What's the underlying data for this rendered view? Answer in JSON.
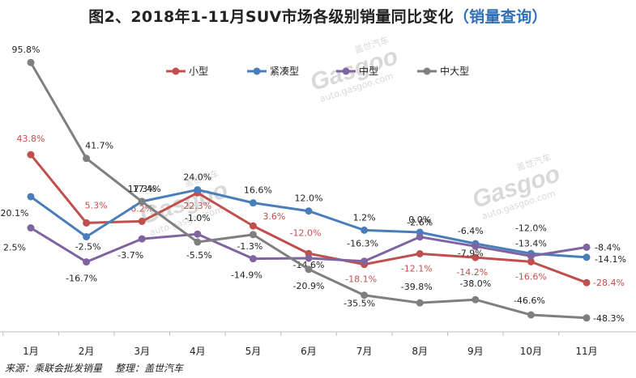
{
  "title": {
    "main": "图2、2018年1-11月SUV市场各级别销量同比变化",
    "sub": "（销量查询）"
  },
  "watermark": {
    "brand": "Gasgoo",
    "cn": "盖世汽车",
    "url": "auto.gasgoo.com"
  },
  "source": {
    "from": "来源：乘联会批发销量",
    "by": "整理：盖世汽车"
  },
  "chart_data": {
    "type": "line",
    "title": "图2、2018年1-11月SUV市场各级别销量同比变化（销量查询）",
    "xlabel": "",
    "ylabel": "",
    "categories": [
      "1月",
      "2月",
      "3月",
      "4月",
      "5月",
      "6月",
      "7月",
      "8月",
      "9月",
      "10月",
      "11月"
    ],
    "unit": "%",
    "ylim": [
      -55,
      100
    ],
    "grid": false,
    "legend_position": "top",
    "series": [
      {
        "name": "小型",
        "color": "#c0504d",
        "values": [
          43.8,
          5.3,
          6.2,
          22.3,
          3.6,
          -12.0,
          -18.1,
          -12.1,
          -14.2,
          -16.6,
          -28.4
        ],
        "labels": [
          "43.8%",
          "5.3%",
          "6.2%",
          "22.3%",
          "3.6%",
          "-12.0%",
          "-18.1%",
          "-12.1%",
          "-14.2%",
          "-16.6%",
          "-28.4%"
        ]
      },
      {
        "name": "紧凑型",
        "color": "#4a7ebb",
        "values": [
          20.1,
          -2.5,
          17.4,
          24.0,
          16.6,
          12.0,
          1.2,
          0.0,
          -6.4,
          -12.0,
          -14.1
        ],
        "labels": [
          "20.1%",
          "-2.5%",
          "17.4%",
          "24.0%",
          "16.6%",
          "12.0%",
          "1.2%",
          "0.0%",
          "-6.4%",
          "-12.0%",
          "-14.1%"
        ]
      },
      {
        "name": "中型",
        "color": "#8064a2",
        "values": [
          2.5,
          -16.7,
          -3.7,
          -1.0,
          -14.9,
          -14.6,
          -16.3,
          -2.6,
          -7.9,
          -13.4,
          -8.4
        ],
        "labels": [
          "2.5%",
          "-16.7%",
          "-3.7%",
          "-1.0%",
          "-14.9%",
          "-14.6%",
          "-16.3%",
          "-2.6%",
          "-7.9%",
          "-13.4%",
          "-8.4%"
        ]
      },
      {
        "name": "中大型",
        "color": "#7f7f7f",
        "values": [
          95.8,
          41.7,
          17.3,
          -5.5,
          -1.3,
          -20.9,
          -35.5,
          -39.8,
          -38.0,
          -46.6,
          -48.3
        ],
        "labels": [
          "95.8%",
          "41.7%",
          "17.3%",
          "-5.5%",
          "-1.3%",
          "-20.9%",
          "-35.5%",
          "-39.8%",
          "-38.0%",
          "-46.6%",
          "-48.3%"
        ]
      }
    ]
  }
}
